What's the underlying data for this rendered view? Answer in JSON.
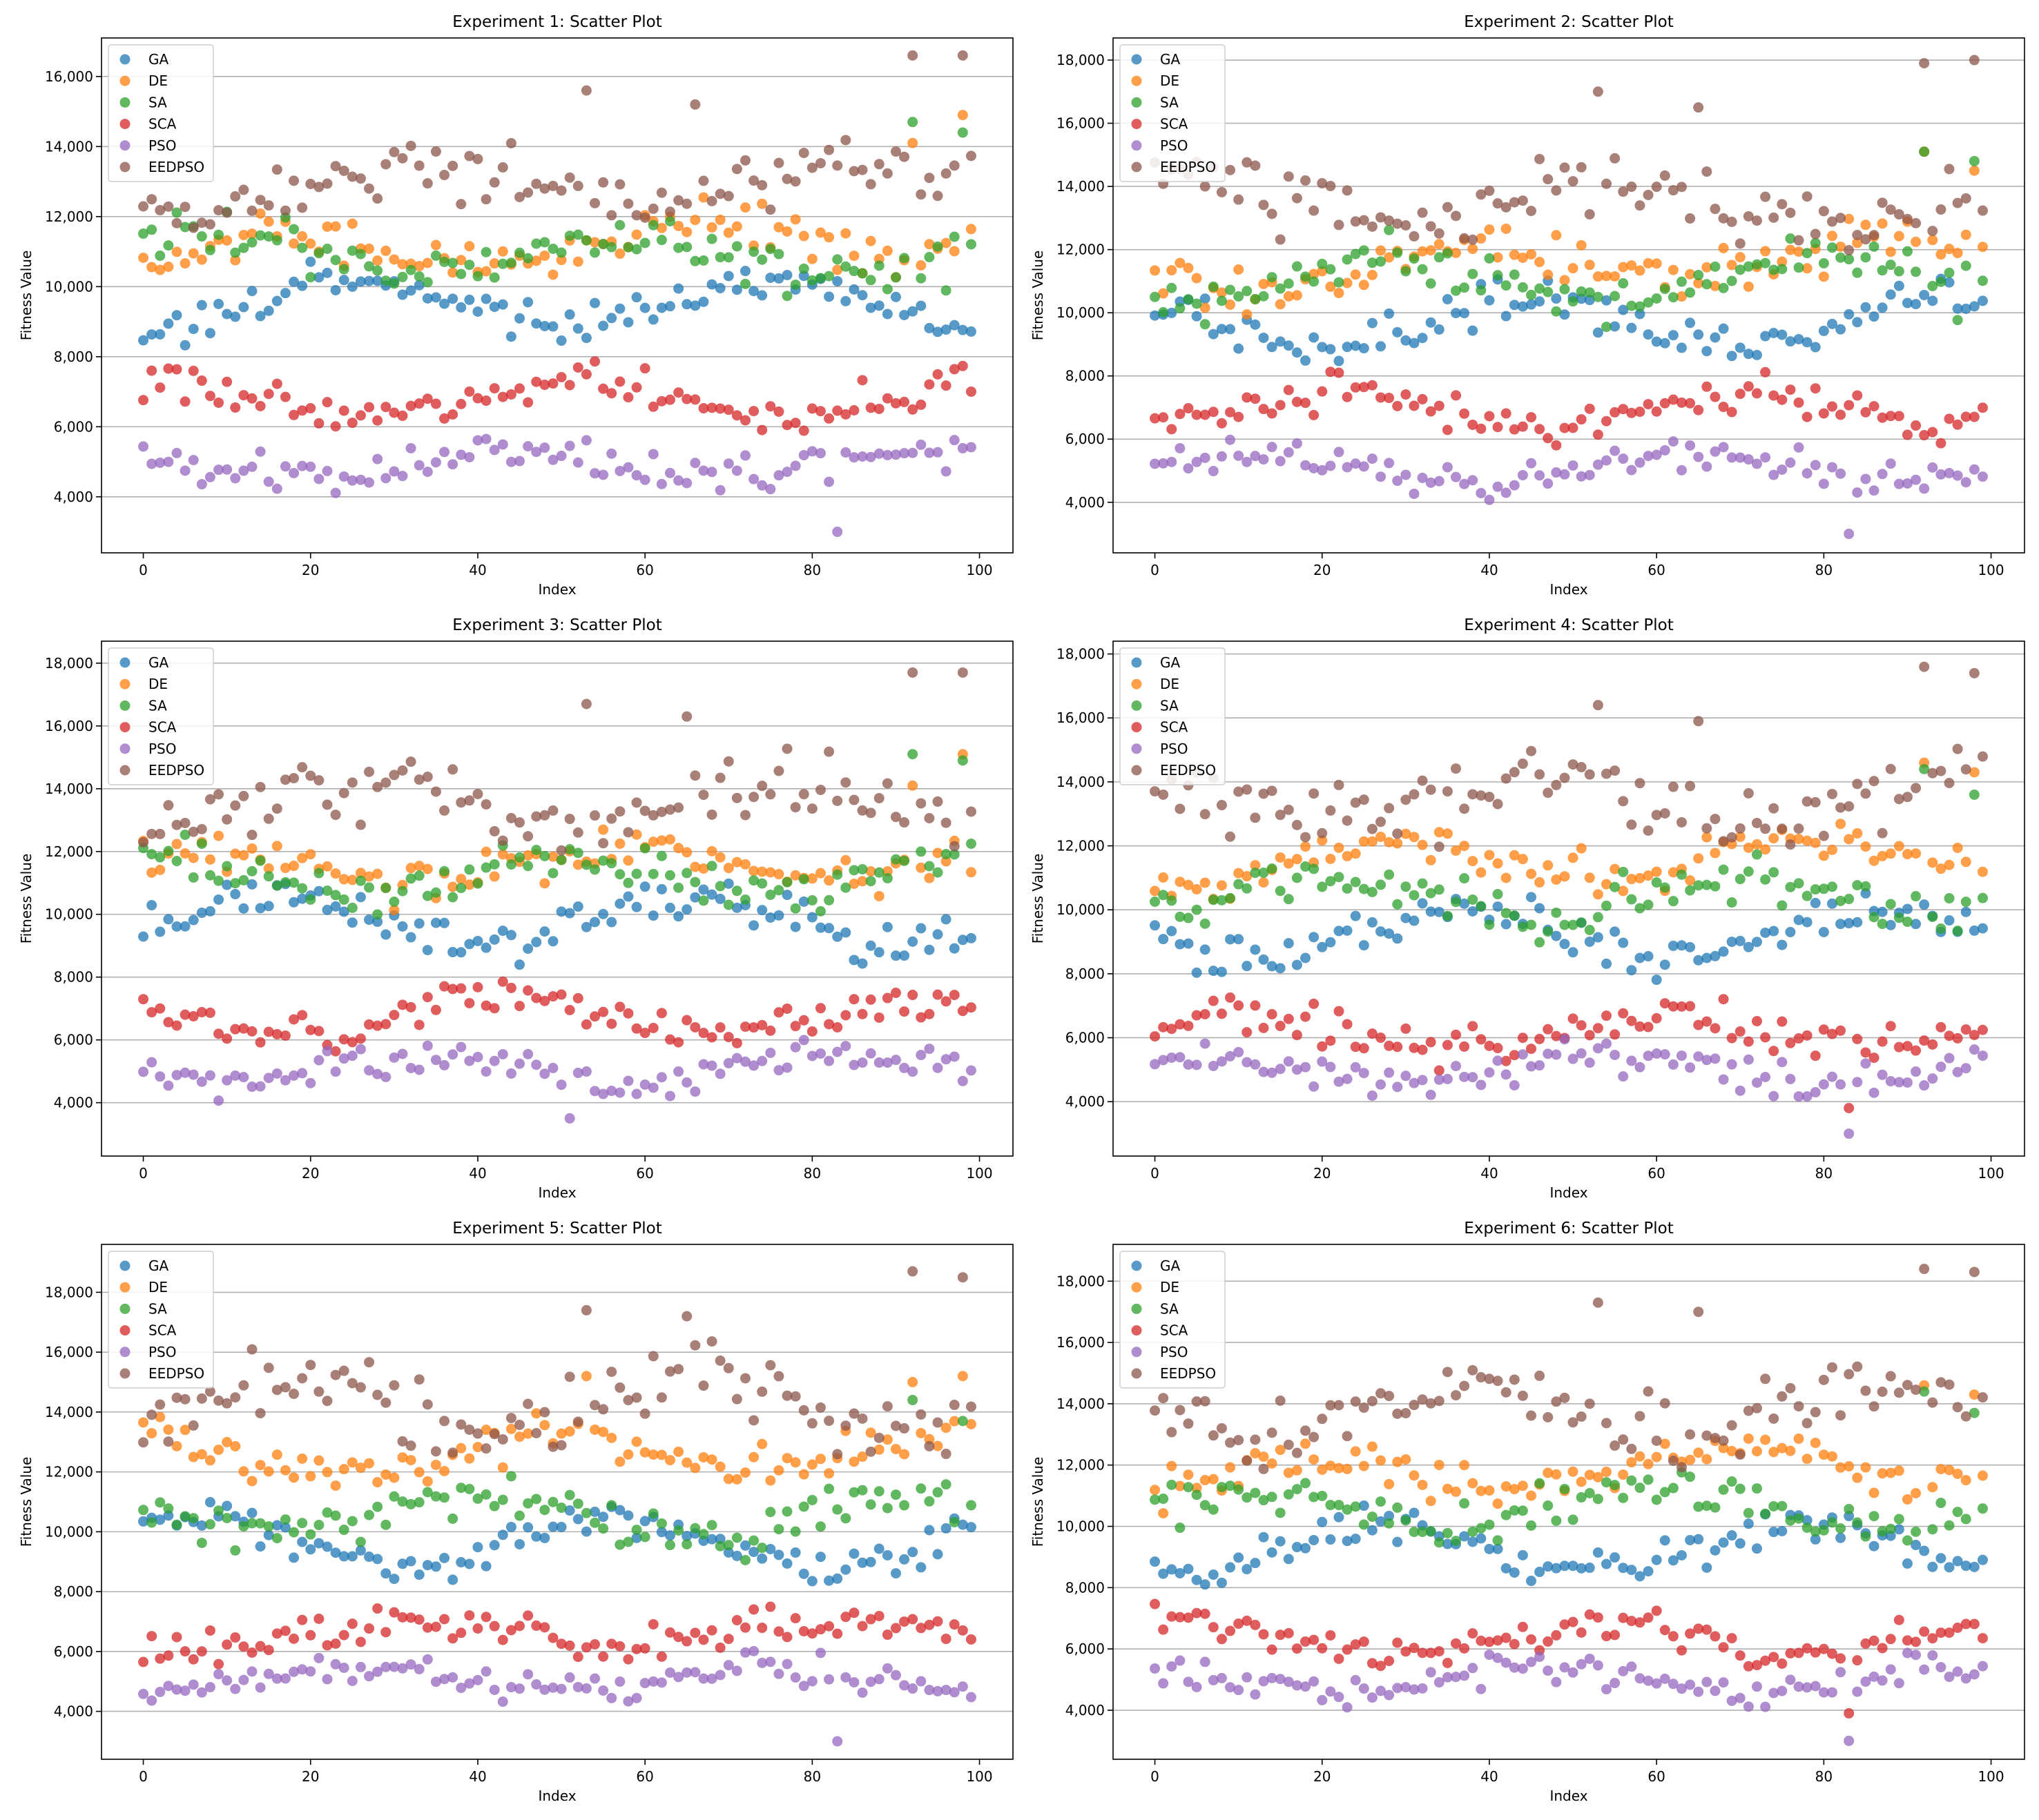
{
  "colors": {
    "GA": "#1f77b4",
    "DE": "#ff7f0e",
    "SA": "#2ca02c",
    "SCA": "#d62728",
    "PSO": "#9467bd",
    "EEDPSO": "#8c564b"
  },
  "chart_data": [
    {
      "type": "scatter",
      "title": "Experiment 1: Scatter Plot",
      "xlabel": "Index",
      "ylabel": "Fitness Value",
      "xlim": [
        -5,
        104
      ],
      "ylim": [
        2400,
        17100
      ],
      "xticks": [
        0,
        20,
        40,
        60,
        80,
        100
      ],
      "yticks": [
        4000,
        6000,
        8000,
        10000,
        12000,
        14000,
        16000
      ],
      "ytick_labels": [
        "4,000",
        "6,000",
        "8,000",
        "10,000",
        "12,000",
        "14,000",
        "16,000"
      ],
      "grid": "horizontal",
      "legend": "upper-left",
      "series": [
        {
          "name": "GA",
          "base": 9500,
          "amp": 700,
          "slope": 0,
          "noise": 900,
          "seed": 11,
          "highs": []
        },
        {
          "name": "DE",
          "base": 10900,
          "amp": 500,
          "slope": 5,
          "noise": 900,
          "seed": 12,
          "highs": [
            [
              92,
              14100
            ],
            [
              98,
              14900
            ]
          ]
        },
        {
          "name": "SA",
          "base": 10900,
          "amp": 500,
          "slope": 0,
          "noise": 1100,
          "seed": 13,
          "highs": [
            [
              92,
              14700
            ],
            [
              98,
              14400
            ]
          ]
        },
        {
          "name": "SCA",
          "base": 6800,
          "amp": 500,
          "slope": 0,
          "noise": 850,
          "seed": 14,
          "highs": []
        },
        {
          "name": "PSO",
          "base": 5000,
          "amp": 400,
          "slope": 0,
          "noise": 800,
          "seed": 15,
          "highs": [
            [
              83,
              3000
            ]
          ]
        },
        {
          "name": "EEDPSO",
          "base": 13000,
          "amp": 600,
          "slope": 0,
          "noise": 1400,
          "seed": 16,
          "highs": [
            [
              53,
              15600
            ],
            [
              66,
              15200
            ],
            [
              92,
              16600
            ],
            [
              98,
              16600
            ]
          ]
        }
      ]
    },
    {
      "type": "scatter",
      "title": "Experiment 2: Scatter Plot",
      "xlabel": "Index",
      "ylabel": "Fitness Value",
      "xlim": [
        -5,
        104
      ],
      "ylim": [
        2400,
        18700
      ],
      "xticks": [
        0,
        20,
        40,
        60,
        80,
        100
      ],
      "yticks": [
        4000,
        6000,
        8000,
        10000,
        12000,
        14000,
        16000,
        18000
      ],
      "ytick_labels": [
        "4,000",
        "6,000",
        "8,000",
        "10,000",
        "12,000",
        "14,000",
        "16,000",
        "18,000"
      ],
      "grid": "horizontal",
      "legend": "upper-left",
      "series": [
        {
          "name": "GA",
          "base": 9700,
          "amp": 800,
          "slope": 0,
          "noise": 1000,
          "seed": 21,
          "highs": []
        },
        {
          "name": "DE",
          "base": 11300,
          "amp": 600,
          "slope": 5,
          "noise": 1000,
          "seed": 22,
          "highs": [
            [
              92,
              15100
            ],
            [
              98,
              14500
            ]
          ]
        },
        {
          "name": "SA",
          "base": 11100,
          "amp": 600,
          "slope": 0,
          "noise": 1100,
          "seed": 23,
          "highs": [
            [
              92,
              15100
            ],
            [
              98,
              14800
            ]
          ]
        },
        {
          "name": "SCA",
          "base": 6900,
          "amp": 500,
          "slope": 0,
          "noise": 900,
          "seed": 24,
          "highs": []
        },
        {
          "name": "PSO",
          "base": 5100,
          "amp": 400,
          "slope": 0,
          "noise": 800,
          "seed": 25,
          "highs": [
            [
              83,
              3000
            ]
          ]
        },
        {
          "name": "EEDPSO",
          "base": 13500,
          "amp": 700,
          "slope": 0,
          "noise": 1600,
          "seed": 26,
          "highs": [
            [
              53,
              17000
            ],
            [
              65,
              16500
            ],
            [
              92,
              17900
            ],
            [
              98,
              18000
            ]
          ]
        }
      ]
    },
    {
      "type": "scatter",
      "title": "Experiment 3: Scatter Plot",
      "xlabel": "Index",
      "ylabel": "Fitness Value",
      "xlim": [
        -5,
        104
      ],
      "ylim": [
        2300,
        18700
      ],
      "xticks": [
        0,
        20,
        40,
        60,
        80,
        100
      ],
      "yticks": [
        4000,
        6000,
        8000,
        10000,
        12000,
        14000,
        16000,
        18000
      ],
      "ytick_labels": [
        "4,000",
        "6,000",
        "8,000",
        "10,000",
        "12,000",
        "14,000",
        "16,000",
        "18,000"
      ],
      "grid": "horizontal",
      "legend": "upper-left",
      "series": [
        {
          "name": "GA",
          "base": 9800,
          "amp": 800,
          "slope": 0,
          "noise": 1000,
          "seed": 31,
          "highs": []
        },
        {
          "name": "DE",
          "base": 11300,
          "amp": 600,
          "slope": 5,
          "noise": 1000,
          "seed": 32,
          "highs": [
            [
              92,
              14100
            ],
            [
              98,
              15100
            ]
          ]
        },
        {
          "name": "SA",
          "base": 11200,
          "amp": 600,
          "slope": 0,
          "noise": 1100,
          "seed": 33,
          "highs": [
            [
              92,
              15100
            ],
            [
              98,
              14900
            ]
          ]
        },
        {
          "name": "SCA",
          "base": 6700,
          "amp": 500,
          "slope": 0,
          "noise": 900,
          "seed": 34,
          "highs": []
        },
        {
          "name": "PSO",
          "base": 5100,
          "amp": 400,
          "slope": 0,
          "noise": 800,
          "seed": 35,
          "highs": [
            [
              51,
              3500
            ]
          ]
        },
        {
          "name": "EEDPSO",
          "base": 13600,
          "amp": 700,
          "slope": 0,
          "noise": 1600,
          "seed": 36,
          "highs": [
            [
              53,
              16700
            ],
            [
              65,
              16300
            ],
            [
              92,
              17700
            ],
            [
              98,
              17700
            ]
          ]
        }
      ]
    },
    {
      "type": "scatter",
      "title": "Experiment 4: Scatter Plot",
      "xlabel": "Index",
      "ylabel": "Fitness Value",
      "xlim": [
        -5,
        104
      ],
      "ylim": [
        2300,
        18400
      ],
      "xticks": [
        0,
        20,
        40,
        60,
        80,
        100
      ],
      "yticks": [
        4000,
        6000,
        8000,
        10000,
        12000,
        14000,
        16000,
        18000
      ],
      "ytick_labels": [
        "4,000",
        "6,000",
        "8,000",
        "10,000",
        "12,000",
        "14,000",
        "16,000",
        "18,000"
      ],
      "grid": "horizontal",
      "legend": "upper-left",
      "series": [
        {
          "name": "GA",
          "base": 9200,
          "amp": 800,
          "slope": 0,
          "noise": 1000,
          "seed": 41,
          "highs": []
        },
        {
          "name": "DE",
          "base": 11300,
          "amp": 600,
          "slope": 5,
          "noise": 1000,
          "seed": 42,
          "highs": [
            [
              92,
              14600
            ],
            [
              98,
              14300
            ]
          ]
        },
        {
          "name": "SA",
          "base": 10400,
          "amp": 600,
          "slope": 0,
          "noise": 1100,
          "seed": 43,
          "highs": [
            [
              92,
              14400
            ],
            [
              98,
              13600
            ]
          ]
        },
        {
          "name": "SCA",
          "base": 6200,
          "amp": 500,
          "slope": 0,
          "noise": 900,
          "seed": 44,
          "highs": [
            [
              83,
              3800
            ]
          ]
        },
        {
          "name": "PSO",
          "base": 5000,
          "amp": 400,
          "slope": 0,
          "noise": 800,
          "seed": 45,
          "highs": [
            [
              83,
              3000
            ]
          ]
        },
        {
          "name": "EEDPSO",
          "base": 13400,
          "amp": 700,
          "slope": 0,
          "noise": 1600,
          "seed": 46,
          "highs": [
            [
              53,
              16400
            ],
            [
              65,
              15900
            ],
            [
              92,
              17600
            ],
            [
              98,
              17400
            ]
          ]
        }
      ]
    },
    {
      "type": "scatter",
      "title": "Experiment 5: Scatter Plot",
      "xlabel": "Index",
      "ylabel": "Fitness Value",
      "xlim": [
        -5,
        104
      ],
      "ylim": [
        2400,
        19600
      ],
      "xticks": [
        0,
        20,
        40,
        60,
        80,
        100
      ],
      "yticks": [
        4000,
        6000,
        8000,
        10000,
        12000,
        14000,
        16000,
        18000
      ],
      "ytick_labels": [
        "4,000",
        "6,000",
        "8,000",
        "10,000",
        "12,000",
        "14,000",
        "16,000",
        "18,000"
      ],
      "grid": "horizontal",
      "legend": "upper-left",
      "series": [
        {
          "name": "GA",
          "base": 9600,
          "amp": 800,
          "slope": 0,
          "noise": 1000,
          "seed": 51,
          "highs": []
        },
        {
          "name": "DE",
          "base": 12300,
          "amp": 700,
          "slope": 5,
          "noise": 1100,
          "seed": 52,
          "highs": [
            [
              53,
              15200
            ],
            [
              92,
              15000
            ],
            [
              98,
              15200
            ]
          ]
        },
        {
          "name": "SA",
          "base": 10500,
          "amp": 600,
          "slope": 0,
          "noise": 1100,
          "seed": 53,
          "highs": [
            [
              92,
              14400
            ],
            [
              98,
              13700
            ]
          ]
        },
        {
          "name": "SCA",
          "base": 6500,
          "amp": 500,
          "slope": 0,
          "noise": 900,
          "seed": 54,
          "highs": []
        },
        {
          "name": "PSO",
          "base": 5100,
          "amp": 400,
          "slope": 0,
          "noise": 800,
          "seed": 55,
          "highs": [
            [
              83,
              3000
            ]
          ]
        },
        {
          "name": "EEDPSO",
          "base": 14300,
          "amp": 800,
          "slope": 0,
          "noise": 1700,
          "seed": 56,
          "highs": [
            [
              53,
              17400
            ],
            [
              65,
              17200
            ],
            [
              92,
              18700
            ],
            [
              98,
              18500
            ]
          ]
        }
      ]
    },
    {
      "type": "scatter",
      "title": "Experiment 6: Scatter Plot",
      "xlabel": "Index",
      "ylabel": "Fitness Value",
      "xlim": [
        -5,
        104
      ],
      "ylim": [
        2400,
        19200
      ],
      "xticks": [
        0,
        20,
        40,
        60,
        80,
        100
      ],
      "yticks": [
        4000,
        6000,
        8000,
        10000,
        12000,
        14000,
        16000,
        18000
      ],
      "ytick_labels": [
        "4,000",
        "6,000",
        "8,000",
        "10,000",
        "12,000",
        "14,000",
        "16,000",
        "18,000"
      ],
      "grid": "horizontal",
      "legend": "upper-left",
      "series": [
        {
          "name": "GA",
          "base": 9300,
          "amp": 800,
          "slope": 0,
          "noise": 1000,
          "seed": 61,
          "highs": []
        },
        {
          "name": "DE",
          "base": 11600,
          "amp": 600,
          "slope": 5,
          "noise": 1000,
          "seed": 62,
          "highs": [
            [
              92,
              14600
            ],
            [
              98,
              14300
            ]
          ]
        },
        {
          "name": "SA",
          "base": 10600,
          "amp": 600,
          "slope": 0,
          "noise": 1100,
          "seed": 63,
          "highs": [
            [
              92,
              14400
            ],
            [
              98,
              13700
            ]
          ]
        },
        {
          "name": "SCA",
          "base": 6300,
          "amp": 500,
          "slope": 0,
          "noise": 900,
          "seed": 64,
          "highs": [
            [
              83,
              3900
            ]
          ]
        },
        {
          "name": "PSO",
          "base": 5000,
          "amp": 400,
          "slope": 0,
          "noise": 800,
          "seed": 65,
          "highs": [
            [
              83,
              3000
            ]
          ]
        },
        {
          "name": "EEDPSO",
          "base": 13800,
          "amp": 800,
          "slope": 0,
          "noise": 1700,
          "seed": 66,
          "highs": [
            [
              53,
              17300
            ],
            [
              65,
              17000
            ],
            [
              92,
              18400
            ],
            [
              98,
              18300
            ]
          ]
        }
      ]
    }
  ]
}
